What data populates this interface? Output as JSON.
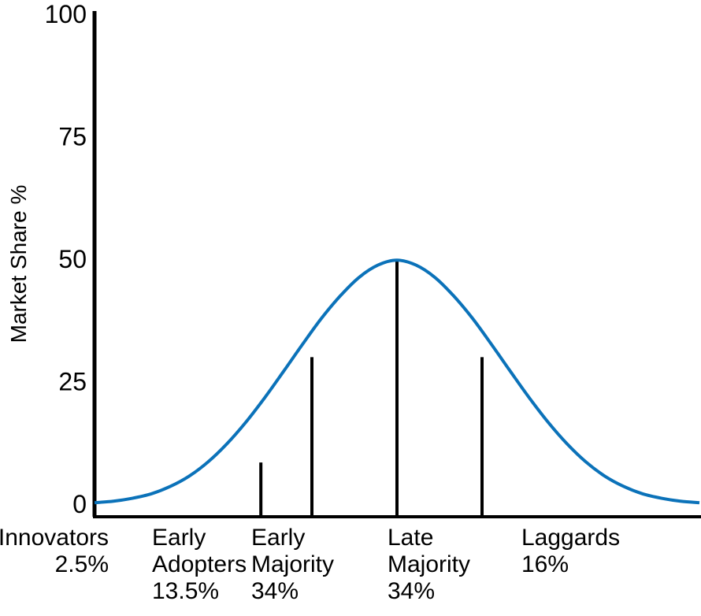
{
  "chart_data": {
    "type": "line",
    "title": "",
    "xlabel": "",
    "ylabel": "Market Share %",
    "ylim": [
      0,
      100
    ],
    "yticks": [
      "0",
      "25",
      "50",
      "75",
      "100"
    ],
    "grid": false,
    "curve": {
      "x": [
        0,
        0.5,
        1,
        1.5,
        2,
        2.5,
        3,
        3.5,
        4,
        4.5,
        5,
        5.5,
        6,
        6.5,
        7,
        7.5,
        8,
        8.5,
        9,
        9.5,
        10,
        10.5,
        11,
        11.5,
        12,
        12.5,
        13,
        13.5,
        14,
        14.5,
        15,
        15.5,
        16
      ],
      "values": [
        0.3,
        0.6,
        1.2,
        2.1,
        3.6,
        5.7,
        8.6,
        12.3,
        16.7,
        21.7,
        27.1,
        32.6,
        37.9,
        42.5,
        46.3,
        48.8,
        49.8,
        48.8,
        46.3,
        42.5,
        37.9,
        32.6,
        27.1,
        21.7,
        16.7,
        12.3,
        8.6,
        5.7,
        3.6,
        2.1,
        1.2,
        0.6,
        0.3
      ],
      "color": "#0b72b9"
    },
    "dividers": [
      {
        "x": 5.75,
        "y": 30
      },
      {
        "x": 8,
        "y": 49.8
      },
      {
        "x": 10.25,
        "y": 30
      },
      {
        "x": 4.4,
        "y": 8.5
      }
    ],
    "categories": [
      {
        "lines": [
          "Innovators",
          "2.5%"
        ],
        "align": "end"
      },
      {
        "lines": [
          "Early",
          "Adopters",
          "13.5%"
        ],
        "align": "start"
      },
      {
        "lines": [
          "Early",
          "Majority",
          "34%"
        ],
        "align": "start"
      },
      {
        "lines": [
          "Late",
          "Majority",
          "34%"
        ],
        "align": "start"
      },
      {
        "lines": [
          "Laggards",
          "16%"
        ],
        "align": "start"
      }
    ]
  }
}
